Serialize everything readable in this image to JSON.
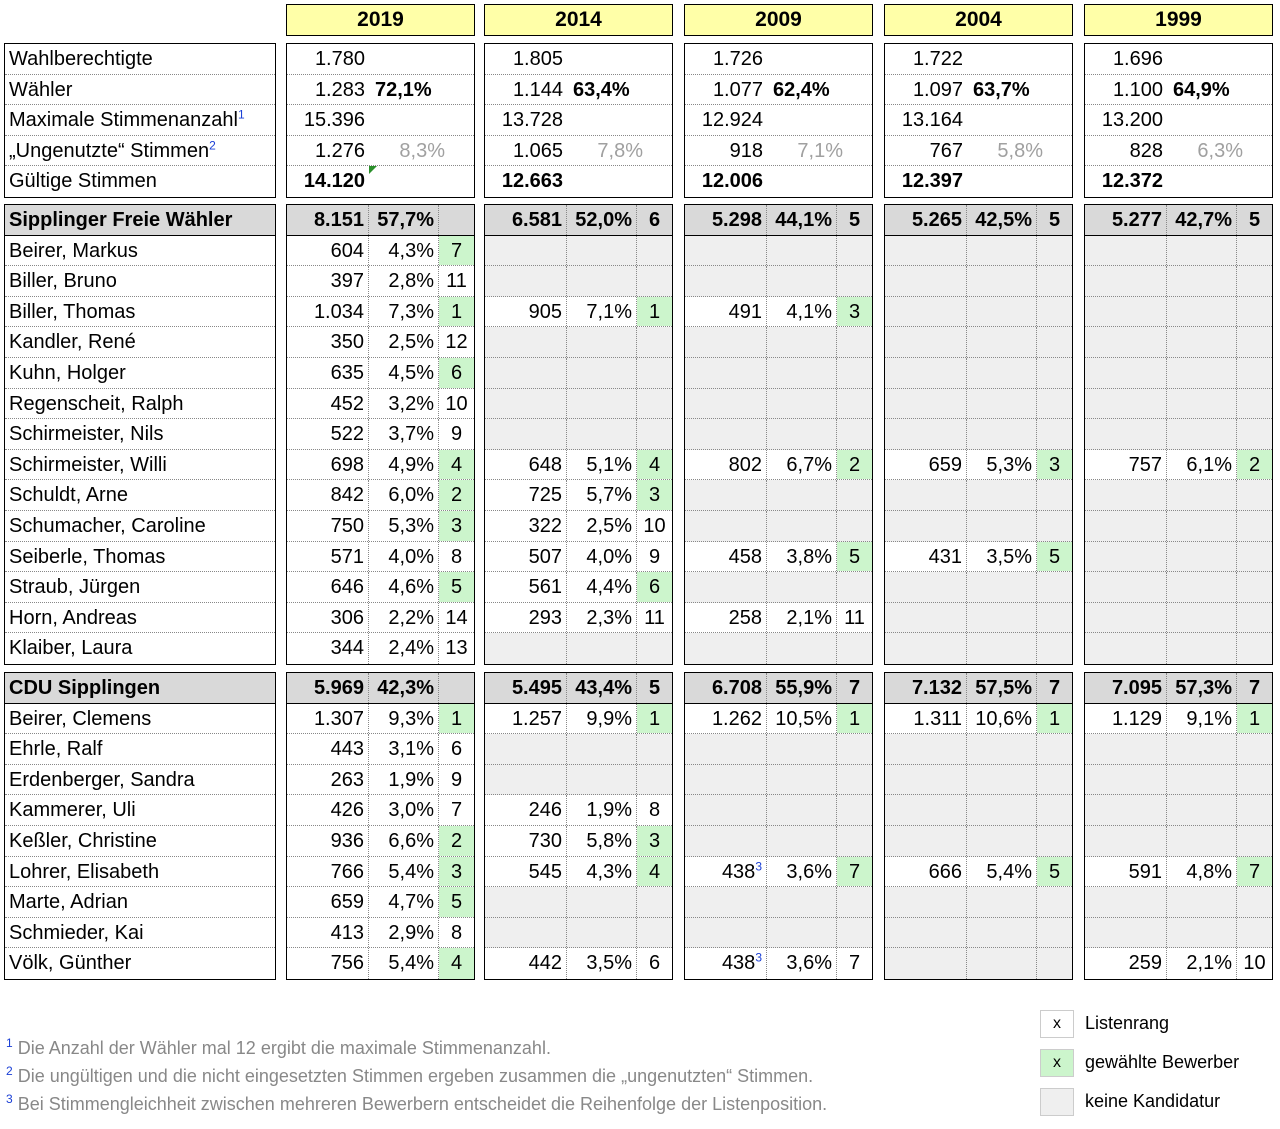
{
  "years": [
    "2019",
    "2014",
    "2009",
    "2004",
    "1999"
  ],
  "stats": {
    "labels": [
      "Wahlberechtigte",
      "Wähler",
      "Maximale Stimmenanzahl",
      "„Ungenutzte“ Stimmen",
      "Gültige Stimmen"
    ],
    "label_notes": [
      "",
      "",
      "1",
      "2",
      ""
    ],
    "values": {
      "2019": [
        [
          "1.780",
          ""
        ],
        [
          "1.283",
          "72,1%"
        ],
        [
          "15.396",
          ""
        ],
        [
          "1.276",
          "8,3%"
        ],
        [
          "14.120",
          ""
        ]
      ],
      "2014": [
        [
          "1.805",
          ""
        ],
        [
          "1.144",
          "63,4%"
        ],
        [
          "13.728",
          ""
        ],
        [
          "1.065",
          "7,8%"
        ],
        [
          "12.663",
          ""
        ]
      ],
      "2009": [
        [
          "1.726",
          ""
        ],
        [
          "1.077",
          "62,4%"
        ],
        [
          "12.924",
          ""
        ],
        [
          "918",
          "7,1%"
        ],
        [
          "12.006",
          ""
        ]
      ],
      "2004": [
        [
          "1.722",
          ""
        ],
        [
          "1.097",
          "63,7%"
        ],
        [
          "13.164",
          ""
        ],
        [
          "767",
          "5,8%"
        ],
        [
          "12.397",
          ""
        ]
      ],
      "1999": [
        [
          "1.696",
          ""
        ],
        [
          "1.100",
          "64,9%"
        ],
        [
          "13.200",
          ""
        ],
        [
          "828",
          "6,3%"
        ],
        [
          "12.372",
          ""
        ]
      ]
    }
  },
  "parties": [
    {
      "name": "Sipplinger Freie Wähler",
      "totals": {
        "2019": [
          "8.151",
          "57,7%",
          ""
        ],
        "2014": [
          "6.581",
          "52,0%",
          "6"
        ],
        "2009": [
          "5.298",
          "44,1%",
          "5"
        ],
        "2004": [
          "5.265",
          "42,5%",
          "5"
        ],
        "1999": [
          "5.277",
          "42,7%",
          "5"
        ]
      },
      "candidates": [
        {
          "name": "Beirer, Markus",
          "results": {
            "2019": [
              "604",
              "4,3%",
              "7",
              true
            ]
          }
        },
        {
          "name": "Biller, Bruno",
          "results": {
            "2019": [
              "397",
              "2,8%",
              "11",
              false
            ]
          }
        },
        {
          "name": "Biller, Thomas",
          "results": {
            "2019": [
              "1.034",
              "7,3%",
              "1",
              true
            ],
            "2014": [
              "905",
              "7,1%",
              "1",
              true
            ],
            "2009": [
              "491",
              "4,1%",
              "3",
              true
            ]
          }
        },
        {
          "name": "Kandler, René",
          "results": {
            "2019": [
              "350",
              "2,5%",
              "12",
              false
            ]
          }
        },
        {
          "name": "Kuhn, Holger",
          "results": {
            "2019": [
              "635",
              "4,5%",
              "6",
              true
            ]
          }
        },
        {
          "name": "Regenscheit, Ralph",
          "results": {
            "2019": [
              "452",
              "3,2%",
              "10",
              false
            ]
          }
        },
        {
          "name": "Schirmeister, Nils",
          "results": {
            "2019": [
              "522",
              "3,7%",
              "9",
              false
            ]
          }
        },
        {
          "name": "Schirmeister, Willi",
          "results": {
            "2019": [
              "698",
              "4,9%",
              "4",
              true
            ],
            "2014": [
              "648",
              "5,1%",
              "4",
              true
            ],
            "2009": [
              "802",
              "6,7%",
              "2",
              true
            ],
            "2004": [
              "659",
              "5,3%",
              "3",
              true
            ],
            "1999": [
              "757",
              "6,1%",
              "2",
              true
            ]
          }
        },
        {
          "name": "Schuldt, Arne",
          "results": {
            "2019": [
              "842",
              "6,0%",
              "2",
              true
            ],
            "2014": [
              "725",
              "5,7%",
              "3",
              true
            ]
          }
        },
        {
          "name": "Schumacher, Caroline",
          "results": {
            "2019": [
              "750",
              "5,3%",
              "3",
              true
            ],
            "2014": [
              "322",
              "2,5%",
              "10",
              false
            ]
          }
        },
        {
          "name": "Seiberle, Thomas",
          "results": {
            "2019": [
              "571",
              "4,0%",
              "8",
              false
            ],
            "2014": [
              "507",
              "4,0%",
              "9",
              false
            ],
            "2009": [
              "458",
              "3,8%",
              "5",
              true
            ],
            "2004": [
              "431",
              "3,5%",
              "5",
              true
            ]
          }
        },
        {
          "name": "Straub, Jürgen",
          "results": {
            "2019": [
              "646",
              "4,6%",
              "5",
              true
            ],
            "2014": [
              "561",
              "4,4%",
              "6",
              true
            ]
          }
        },
        {
          "name": "Horn, Andreas",
          "results": {
            "2019": [
              "306",
              "2,2%",
              "14",
              false
            ],
            "2014": [
              "293",
              "2,3%",
              "11",
              false
            ],
            "2009": [
              "258",
              "2,1%",
              "11",
              false
            ]
          }
        },
        {
          "name": "Klaiber, Laura",
          "results": {
            "2019": [
              "344",
              "2,4%",
              "13",
              false
            ]
          }
        }
      ]
    },
    {
      "name": "CDU Sipplingen",
      "totals": {
        "2019": [
          "5.969",
          "42,3%",
          ""
        ],
        "2014": [
          "5.495",
          "43,4%",
          "5"
        ],
        "2009": [
          "6.708",
          "55,9%",
          "7"
        ],
        "2004": [
          "7.132",
          "57,5%",
          "7"
        ],
        "1999": [
          "7.095",
          "57,3%",
          "7"
        ]
      },
      "candidates": [
        {
          "name": "Beirer, Clemens",
          "results": {
            "2019": [
              "1.307",
              "9,3%",
              "1",
              true
            ],
            "2014": [
              "1.257",
              "9,9%",
              "1",
              true
            ],
            "2009": [
              "1.262",
              "10,5%",
              "1",
              true
            ],
            "2004": [
              "1.311",
              "10,6%",
              "1",
              true
            ],
            "1999": [
              "1.129",
              "9,1%",
              "1",
              true
            ]
          }
        },
        {
          "name": "Ehrle, Ralf",
          "results": {
            "2019": [
              "443",
              "3,1%",
              "6",
              false
            ]
          }
        },
        {
          "name": "Erdenberger, Sandra",
          "results": {
            "2019": [
              "263",
              "1,9%",
              "9",
              false
            ]
          }
        },
        {
          "name": "Kammerer, Uli",
          "results": {
            "2019": [
              "426",
              "3,0%",
              "7",
              false
            ],
            "2014": [
              "246",
              "1,9%",
              "8",
              false
            ]
          }
        },
        {
          "name": "Keßler, Christine",
          "results": {
            "2019": [
              "936",
              "6,6%",
              "2",
              true
            ],
            "2014": [
              "730",
              "5,8%",
              "3",
              true
            ]
          }
        },
        {
          "name": "Lohrer, Elisabeth",
          "results": {
            "2019": [
              "766",
              "5,4%",
              "3",
              true
            ],
            "2014": [
              "545",
              "4,3%",
              "4",
              true
            ],
            "2009": [
              "438",
              "3,6%",
              "7",
              true,
              "3"
            ],
            "2004": [
              "666",
              "5,4%",
              "5",
              true
            ],
            "1999": [
              "591",
              "4,8%",
              "7",
              true
            ]
          }
        },
        {
          "name": "Marte, Adrian",
          "results": {
            "2019": [
              "659",
              "4,7%",
              "5",
              true
            ]
          }
        },
        {
          "name": "Schmieder, Kai",
          "results": {
            "2019": [
              "413",
              "2,9%",
              "8",
              false
            ]
          }
        },
        {
          "name": "Völk, Günther",
          "results": {
            "2019": [
              "756",
              "5,4%",
              "4",
              true
            ],
            "2014": [
              "442",
              "3,5%",
              "6",
              false
            ],
            "2009": [
              "438",
              "3,6%",
              "7",
              false,
              "3"
            ],
            "1999": [
              "259",
              "2,1%",
              "10",
              false
            ]
          }
        }
      ]
    }
  ],
  "footnotes": [
    {
      "mark": "1",
      "text": "Die Anzahl der Wähler mal 12 ergibt die maximale Stimmenanzahl."
    },
    {
      "mark": "2",
      "text": "Die ungültigen und die nicht eingesetzten Stimmen ergeben zusammen die „ungenutzten“ Stimmen."
    },
    {
      "mark": "3",
      "text": "Bei Stimmengleichheit zwischen mehreren Bewerbern entscheidet die Reihenfolge der Listenposition."
    }
  ],
  "legend": [
    {
      "symbol": "x",
      "label": "Listenrang",
      "style": "white"
    },
    {
      "symbol": "x",
      "label": "gewählte Bewerber",
      "style": "green"
    },
    {
      "symbol": "",
      "label": "keine Kandidatur",
      "style": "grey"
    }
  ],
  "colors": {
    "header": "#ffffa8",
    "party": "#d9d9d9",
    "elected": "#ccf5cc",
    "no_candidacy": "#efefef"
  }
}
